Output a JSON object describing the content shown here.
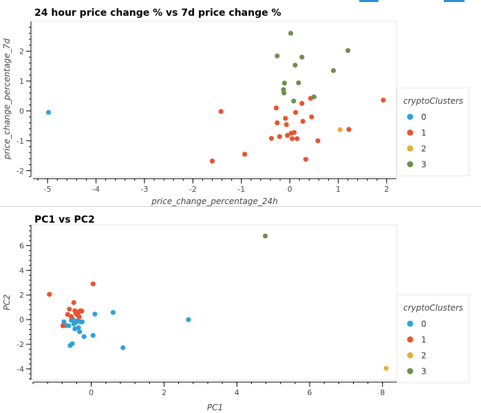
{
  "colors": {
    "cluster_0": "#30a2da",
    "cluster_1": "#e8542f",
    "cluster_2": "#e5ae38",
    "cluster_3": "#6d904f",
    "frame": "#e6e6e6",
    "axis": "#000000",
    "topbar": "#2f8fd6"
  },
  "chart_data": [
    {
      "type": "scatter",
      "title": "24 hour price change % vs 7d price change %",
      "xlabel": "price_change_percentage_24h",
      "ylabel": "price_change_percentage_7d",
      "xlim": [
        -5.3,
        2.2
      ],
      "ylim": [
        -2.2,
        3.0
      ],
      "xticks": [
        -5,
        -4,
        -3,
        -2,
        -1,
        0,
        1,
        2
      ],
      "yticks": [
        -2,
        -1,
        0,
        1,
        2
      ],
      "grid": false,
      "legend": {
        "title": "cryptoClusters",
        "placement": "right",
        "entries": [
          "0",
          "1",
          "2",
          "3"
        ]
      },
      "series": [
        {
          "name": "0",
          "color_key": "cluster_0",
          "points": [
            [
              -4.98,
              -0.05
            ]
          ]
        },
        {
          "name": "1",
          "color_key": "cluster_1",
          "points": [
            [
              -1.6,
              -1.68
            ],
            [
              -1.42,
              -0.02
            ],
            [
              -0.93,
              -1.45
            ],
            [
              -0.38,
              -0.92
            ],
            [
              -0.28,
              0.1
            ],
            [
              -0.26,
              -0.4
            ],
            [
              -0.21,
              -0.86
            ],
            [
              -0.09,
              -0.25
            ],
            [
              -0.07,
              -0.46
            ],
            [
              -0.05,
              -0.82
            ],
            [
              0.03,
              -0.75
            ],
            [
              0.05,
              -0.93
            ],
            [
              0.09,
              -0.72
            ],
            [
              0.12,
              -0.05
            ],
            [
              0.15,
              -0.93
            ],
            [
              0.25,
              0.25
            ],
            [
              0.27,
              -0.35
            ],
            [
              0.33,
              -1.62
            ],
            [
              0.43,
              0.42
            ],
            [
              0.45,
              -0.2
            ],
            [
              0.58,
              -1.0
            ],
            [
              1.22,
              -0.62
            ],
            [
              1.93,
              0.36
            ]
          ]
        },
        {
          "name": "2",
          "color_key": "cluster_2",
          "points": [
            [
              1.04,
              -0.63
            ]
          ]
        },
        {
          "name": "3",
          "color_key": "cluster_3",
          "points": [
            [
              -0.26,
              1.84
            ],
            [
              -0.13,
              0.71
            ],
            [
              -0.12,
              0.6
            ],
            [
              -0.11,
              0.93
            ],
            [
              0.02,
              2.6
            ],
            [
              0.08,
              0.33
            ],
            [
              0.11,
              1.53
            ],
            [
              0.18,
              0.94
            ],
            [
              0.25,
              1.8
            ],
            [
              0.5,
              0.47
            ],
            [
              0.9,
              1.35
            ],
            [
              1.2,
              2.02
            ]
          ]
        }
      ]
    },
    {
      "type": "scatter",
      "title": "PC1 vs PC2",
      "xlabel": "PC1",
      "ylabel": "PC2",
      "xlim": [
        -1.6,
        8.4
      ],
      "ylim": [
        -4.9,
        7.7
      ],
      "xticks": [
        0,
        2,
        4,
        6,
        8
      ],
      "yticks": [
        -4,
        -2,
        0,
        2,
        4,
        6
      ],
      "grid": false,
      "legend": {
        "title": "cryptoClusters",
        "placement": "right",
        "entries": [
          "0",
          "1",
          "2",
          "3"
        ]
      },
      "series": [
        {
          "name": "0",
          "color_key": "cluster_0",
          "points": [
            [
              -0.75,
              -0.18
            ],
            [
              -0.7,
              -0.48
            ],
            [
              -0.62,
              -0.5
            ],
            [
              -0.58,
              -2.1
            ],
            [
              -0.55,
              -0.05
            ],
            [
              -0.52,
              -1.95
            ],
            [
              -0.5,
              0.0
            ],
            [
              -0.48,
              -0.35
            ],
            [
              -0.45,
              -0.75
            ],
            [
              -0.42,
              -0.22
            ],
            [
              -0.38,
              -0.1
            ],
            [
              -0.35,
              -0.65
            ],
            [
              -0.32,
              -0.98
            ],
            [
              -0.3,
              -0.18
            ],
            [
              -0.25,
              -0.18
            ],
            [
              -0.2,
              -1.38
            ],
            [
              0.05,
              -1.28
            ],
            [
              0.1,
              0.45
            ],
            [
              0.6,
              0.58
            ],
            [
              0.87,
              -2.28
            ],
            [
              2.67,
              0.0
            ]
          ]
        },
        {
          "name": "1",
          "color_key": "cluster_1",
          "points": [
            [
              -1.15,
              2.05
            ],
            [
              -0.78,
              -0.5
            ],
            [
              -0.65,
              0.42
            ],
            [
              -0.6,
              0.85
            ],
            [
              -0.55,
              0.25
            ],
            [
              -0.48,
              1.38
            ],
            [
              -0.45,
              0.72
            ],
            [
              -0.42,
              0.5
            ],
            [
              -0.38,
              0.38
            ],
            [
              -0.35,
              0.62
            ],
            [
              -0.33,
              0.22
            ],
            [
              -0.3,
              0.72
            ],
            [
              -0.28,
              0.68
            ],
            [
              -0.26,
              0.7
            ],
            [
              0.05,
              2.9
            ]
          ]
        },
        {
          "name": "2",
          "color_key": "cluster_2",
          "points": [
            [
              8.1,
              -3.95
            ]
          ]
        },
        {
          "name": "3",
          "color_key": "cluster_3",
          "points": [
            [
              4.78,
              6.78
            ]
          ]
        }
      ]
    }
  ]
}
